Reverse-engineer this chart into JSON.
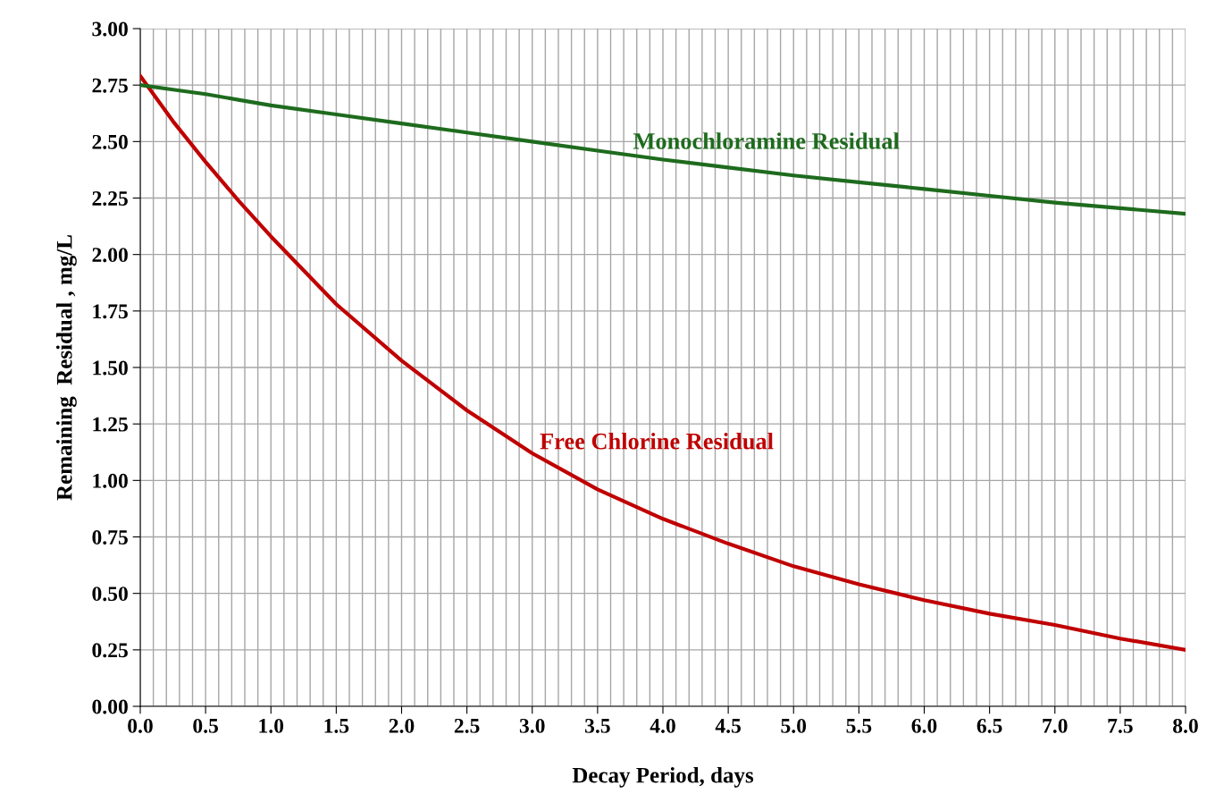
{
  "chart_data": {
    "type": "line",
    "xlabel": "Decay Period, days",
    "ylabel": "Remaining  Residual , mg/L",
    "x": [
      0,
      0.25,
      0.5,
      0.75,
      1.0,
      1.5,
      2.0,
      2.5,
      3.0,
      3.5,
      4.0,
      4.5,
      5.0,
      5.5,
      6.0,
      6.5,
      7.0,
      7.5,
      8.0
    ],
    "series": [
      {
        "name": "Free Chlorine Residual",
        "color": "#c00000",
        "values": [
          2.79,
          2.59,
          2.41,
          2.24,
          2.08,
          1.78,
          1.53,
          1.31,
          1.12,
          0.96,
          0.83,
          0.72,
          0.62,
          0.54,
          0.47,
          0.41,
          0.36,
          0.3,
          0.25
        ]
      },
      {
        "name": "Monochloramine Residual",
        "color": "#1e6b1e",
        "values": [
          2.75,
          2.73,
          2.71,
          2.685,
          2.66,
          2.62,
          2.58,
          2.54,
          2.5,
          2.46,
          2.42,
          2.385,
          2.35,
          2.32,
          2.29,
          2.26,
          2.23,
          2.205,
          2.18
        ]
      }
    ],
    "xlim": [
      0,
      8
    ],
    "ylim": [
      0,
      3
    ],
    "xticks": [
      {
        "value": 0,
        "label": "0.0"
      },
      {
        "value": 0.1,
        "label": null
      },
      {
        "value": 0.2,
        "label": null
      },
      {
        "value": 0.3,
        "label": null
      },
      {
        "value": 0.4,
        "label": null
      },
      {
        "value": 0.5,
        "label": "0.5"
      },
      {
        "value": 0.6,
        "label": null
      },
      {
        "value": 0.7,
        "label": null
      },
      {
        "value": 0.8,
        "label": null
      },
      {
        "value": 0.9,
        "label": null
      },
      {
        "value": 1,
        "label": "1.0"
      },
      {
        "value": 1.1,
        "label": null
      },
      {
        "value": 1.2,
        "label": null
      },
      {
        "value": 1.3,
        "label": null
      },
      {
        "value": 1.4,
        "label": null
      },
      {
        "value": 1.5,
        "label": "1.5"
      },
      {
        "value": 1.6,
        "label": null
      },
      {
        "value": 1.7,
        "label": null
      },
      {
        "value": 1.8,
        "label": null
      },
      {
        "value": 1.9,
        "label": null
      },
      {
        "value": 2,
        "label": "2.0"
      },
      {
        "value": 2.1,
        "label": null
      },
      {
        "value": 2.2,
        "label": null
      },
      {
        "value": 2.3,
        "label": null
      },
      {
        "value": 2.4,
        "label": null
      },
      {
        "value": 2.5,
        "label": "2.5"
      },
      {
        "value": 2.6,
        "label": null
      },
      {
        "value": 2.7,
        "label": null
      },
      {
        "value": 2.8,
        "label": null
      },
      {
        "value": 2.9,
        "label": null
      },
      {
        "value": 3,
        "label": "3.0"
      },
      {
        "value": 3.1,
        "label": null
      },
      {
        "value": 3.2,
        "label": null
      },
      {
        "value": 3.3,
        "label": null
      },
      {
        "value": 3.4,
        "label": null
      },
      {
        "value": 3.5,
        "label": "3.5"
      },
      {
        "value": 3.6,
        "label": null
      },
      {
        "value": 3.7,
        "label": null
      },
      {
        "value": 3.8,
        "label": null
      },
      {
        "value": 3.9,
        "label": null
      },
      {
        "value": 4,
        "label": "4.0"
      },
      {
        "value": 4.1,
        "label": null
      },
      {
        "value": 4.2,
        "label": null
      },
      {
        "value": 4.3,
        "label": null
      },
      {
        "value": 4.4,
        "label": null
      },
      {
        "value": 4.5,
        "label": "4.5"
      },
      {
        "value": 4.6,
        "label": null
      },
      {
        "value": 4.7,
        "label": null
      },
      {
        "value": 4.8,
        "label": null
      },
      {
        "value": 4.9,
        "label": null
      },
      {
        "value": 5,
        "label": "5.0"
      },
      {
        "value": 5.1,
        "label": null
      },
      {
        "value": 5.2,
        "label": null
      },
      {
        "value": 5.3,
        "label": null
      },
      {
        "value": 5.4,
        "label": null
      },
      {
        "value": 5.5,
        "label": "5.5"
      },
      {
        "value": 5.6,
        "label": null
      },
      {
        "value": 5.7,
        "label": null
      },
      {
        "value": 5.8,
        "label": null
      },
      {
        "value": 5.9,
        "label": null
      },
      {
        "value": 6,
        "label": "6.0"
      },
      {
        "value": 6.1,
        "label": null
      },
      {
        "value": 6.2,
        "label": null
      },
      {
        "value": 6.3,
        "label": null
      },
      {
        "value": 6.4,
        "label": null
      },
      {
        "value": 6.5,
        "label": "6.5"
      },
      {
        "value": 6.6,
        "label": null
      },
      {
        "value": 6.7,
        "label": null
      },
      {
        "value": 6.8,
        "label": null
      },
      {
        "value": 6.9,
        "label": null
      },
      {
        "value": 7,
        "label": "7.0"
      },
      {
        "value": 7.1,
        "label": null
      },
      {
        "value": 7.2,
        "label": null
      },
      {
        "value": 7.3,
        "label": null
      },
      {
        "value": 7.4,
        "label": null
      },
      {
        "value": 7.5,
        "label": "7.5"
      },
      {
        "value": 7.6,
        "label": null
      },
      {
        "value": 7.7,
        "label": null
      },
      {
        "value": 7.8,
        "label": null
      },
      {
        "value": 7.9,
        "label": null
      },
      {
        "value": 8,
        "label": "8.0"
      }
    ],
    "yticks": [
      {
        "value": 0,
        "label": "0.00"
      },
      {
        "value": 0.25,
        "label": "0.25"
      },
      {
        "value": 0.5,
        "label": "0.50"
      },
      {
        "value": 0.75,
        "label": "0.75"
      },
      {
        "value": 1,
        "label": "1.00"
      },
      {
        "value": 1.25,
        "label": "1.25"
      },
      {
        "value": 1.5,
        "label": "1.50"
      },
      {
        "value": 1.75,
        "label": "1.75"
      },
      {
        "value": 2,
        "label": "2.00"
      },
      {
        "value": 2.25,
        "label": "2.25"
      },
      {
        "value": 2.5,
        "label": "2.50"
      },
      {
        "value": 2.75,
        "label": "2.75"
      },
      {
        "value": 3,
        "label": "3.00"
      }
    ],
    "grid": true,
    "legend": false,
    "marker": "none",
    "line_style": "solid"
  }
}
